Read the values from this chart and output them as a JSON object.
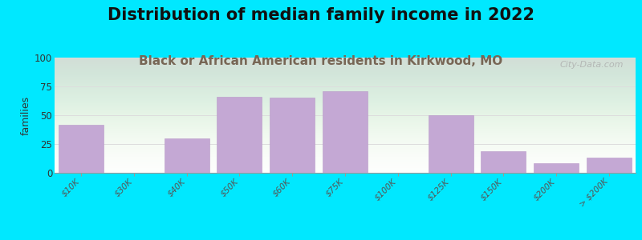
{
  "title": "Distribution of median family income in 2022",
  "subtitle": "Black or African American residents in Kirkwood, MO",
  "categories": [
    "$10K",
    "$30K",
    "$40K",
    "$50K",
    "$60K",
    "$75K",
    "$100K",
    "$125K",
    "$150K",
    "$200K",
    "> $200K"
  ],
  "values": [
    42,
    0,
    30,
    66,
    65,
    71,
    0,
    50,
    19,
    8,
    13
  ],
  "bar_color": "#c4a8d4",
  "bar_edge_color": "#b898c8",
  "ylabel": "families",
  "ylim": [
    0,
    100
  ],
  "yticks": [
    0,
    25,
    50,
    75,
    100
  ],
  "background_outer": "#00e8ff",
  "title_fontsize": 15,
  "subtitle_fontsize": 11,
  "title_color": "#111111",
  "subtitle_color": "#776655",
  "watermark": "City-Data.com",
  "grid_color": "#dddddd",
  "ylabel_fontsize": 9,
  "tick_label_color": "#555555",
  "tick_label_fontsize": 7.5
}
